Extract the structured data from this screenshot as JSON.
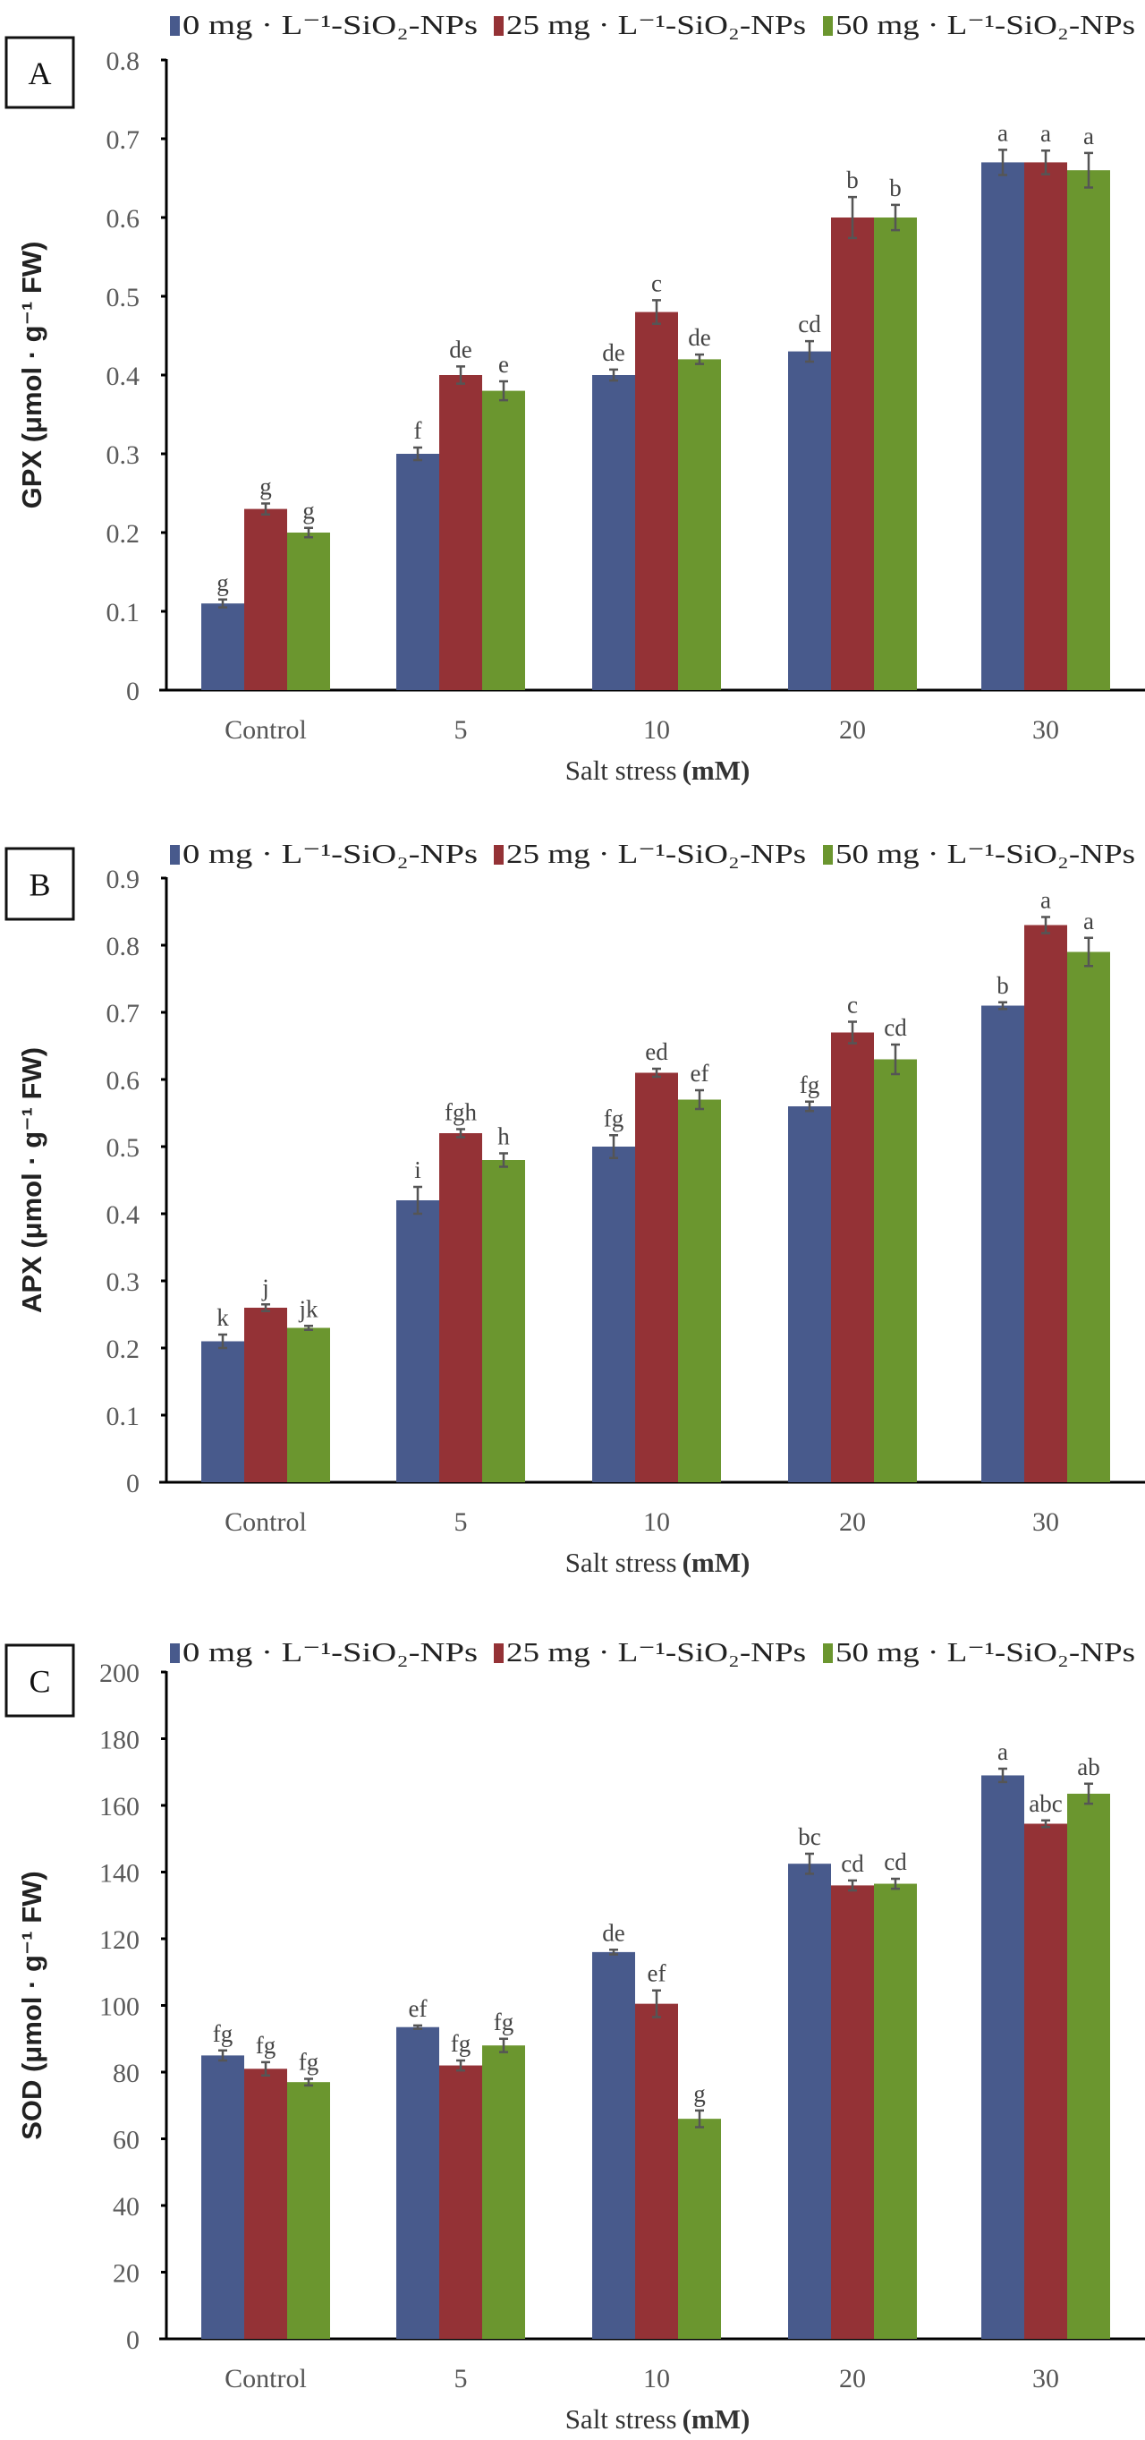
{
  "colors": {
    "s0": "#485a8c",
    "s25": "#943236",
    "s50": "#6b962f",
    "error_bar": "#555555"
  },
  "chart_data": [
    {
      "type": "bar",
      "panel": "A",
      "ylabel": "GPX (μmol · g⁻¹ FW)",
      "xlabel": "Salt stress",
      "xlabel_unit": "(mM)",
      "ylim": [
        0,
        0.8
      ],
      "yticks": [
        "0",
        "0.1",
        "0.2",
        "0.3",
        "0.4",
        "0.5",
        "0.6",
        "0.7",
        "0.8"
      ],
      "tick_step": 0.1,
      "grid": false,
      "legend": "top",
      "categories": [
        "Control",
        "5",
        "10",
        "20",
        "30"
      ],
      "series": [
        {
          "name": "0 mg · L⁻¹-SiO₂-NPs",
          "values": [
            0.11,
            0.3,
            0.4,
            0.43,
            0.67
          ],
          "errors": [
            0.005,
            0.008,
            0.007,
            0.013,
            0.016
          ],
          "letters": [
            "g",
            "f",
            "de",
            "cd",
            "a"
          ]
        },
        {
          "name": "25 mg · L⁻¹-SiO₂-NPs",
          "values": [
            0.23,
            0.4,
            0.48,
            0.6,
            0.67
          ],
          "errors": [
            0.007,
            0.011,
            0.015,
            0.026,
            0.015
          ],
          "letters": [
            "g",
            "de",
            "c",
            "b",
            "a"
          ]
        },
        {
          "name": "50 mg · L⁻¹-SiO₂-NPs",
          "values": [
            0.2,
            0.38,
            0.42,
            0.6,
            0.66
          ],
          "errors": [
            0.006,
            0.012,
            0.006,
            0.016,
            0.022
          ],
          "letters": [
            "g",
            "e",
            "de",
            "b",
            "a"
          ]
        }
      ]
    },
    {
      "type": "bar",
      "panel": "B",
      "ylabel": "APX (μmol · g⁻¹ FW)",
      "xlabel": "Salt stress",
      "xlabel_unit": "(mM)",
      "ylim": [
        0,
        0.9
      ],
      "yticks": [
        "0",
        "0.1",
        "0.2",
        "0.3",
        "0.4",
        "0.5",
        "0.6",
        "0.7",
        "0.8",
        "0.9"
      ],
      "tick_step": 0.1,
      "grid": false,
      "legend": "top",
      "categories": [
        "Control",
        "5",
        "10",
        "20",
        "30"
      ],
      "series": [
        {
          "name": "0 mg · L⁻¹-SiO₂-NPs",
          "values": [
            0.21,
            0.42,
            0.5,
            0.56,
            0.71
          ],
          "errors": [
            0.01,
            0.02,
            0.017,
            0.007,
            0.005
          ],
          "letters": [
            "k",
            "i",
            "fg",
            "fg",
            "b"
          ]
        },
        {
          "name": "25 mg · L⁻¹-SiO₂-NPs",
          "values": [
            0.26,
            0.52,
            0.61,
            0.67,
            0.83
          ],
          "errors": [
            0.005,
            0.006,
            0.006,
            0.016,
            0.012
          ],
          "letters": [
            "j",
            "fgh",
            "ed",
            "c",
            "a"
          ]
        },
        {
          "name": "50 mg · L⁻¹-SiO₂-NPs",
          "values": [
            0.23,
            0.48,
            0.57,
            0.63,
            0.79
          ],
          "errors": [
            0.003,
            0.01,
            0.014,
            0.022,
            0.021
          ],
          "letters": [
            "jk",
            "h",
            "ef",
            "cd",
            "a"
          ]
        }
      ]
    },
    {
      "type": "bar",
      "panel": "C",
      "ylabel": "SOD (μmol · g⁻¹ FW)",
      "xlabel": "Salt stress",
      "xlabel_unit": "(mM)",
      "ylim": [
        0,
        200
      ],
      "yticks": [
        "0",
        "20",
        "40",
        "60",
        "80",
        "100",
        "120",
        "140",
        "160",
        "180",
        "200"
      ],
      "tick_step": 20,
      "grid": false,
      "legend": "top",
      "categories": [
        "Control",
        "5",
        "10",
        "20",
        "30"
      ],
      "series": [
        {
          "name": "0 mg · L⁻¹-SiO₂-NPs",
          "values": [
            85,
            93.5,
            116,
            142.5,
            169
          ],
          "errors": [
            1.5,
            0.5,
            0.7,
            3,
            2
          ],
          "letters": [
            "fg",
            "ef",
            "de",
            "bc",
            "a"
          ]
        },
        {
          "name": "25 mg · L⁻¹-SiO₂-NPs",
          "values": [
            81,
            82,
            100.5,
            136,
            154.5
          ],
          "errors": [
            2,
            1.5,
            4,
            1.5,
            1
          ],
          "letters": [
            "fg",
            "fg",
            "ef",
            "cd",
            "abc"
          ]
        },
        {
          "name": "50 mg · L⁻¹-SiO₂-NPs",
          "values": [
            77,
            88,
            66,
            136.5,
            163.5
          ],
          "errors": [
            1,
            2,
            2.5,
            1.5,
            3
          ],
          "letters": [
            "fg",
            "fg",
            "g",
            "cd",
            "ab"
          ]
        }
      ]
    }
  ]
}
